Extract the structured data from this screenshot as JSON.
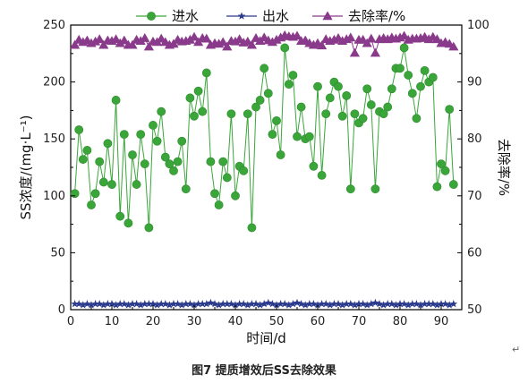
{
  "chart_data": {
    "type": "line",
    "x": [
      1,
      2,
      3,
      4,
      5,
      6,
      7,
      8,
      9,
      10,
      11,
      12,
      13,
      14,
      15,
      16,
      17,
      18,
      19,
      20,
      21,
      22,
      23,
      24,
      25,
      26,
      27,
      28,
      29,
      30,
      31,
      32,
      33,
      34,
      35,
      36,
      37,
      38,
      39,
      40,
      41,
      42,
      43,
      44,
      45,
      46,
      47,
      48,
      49,
      50,
      51,
      52,
      53,
      54,
      55,
      56,
      57,
      58,
      59,
      60,
      61,
      62,
      63,
      64,
      65,
      66,
      67,
      68,
      69,
      70,
      71,
      72,
      73,
      74,
      75,
      76,
      77,
      78,
      79,
      80,
      81,
      82,
      83,
      84,
      85,
      86,
      87,
      88,
      89,
      90,
      91,
      92,
      93
    ],
    "series": [
      {
        "name": "进水",
        "axis": "left",
        "marker": "circle",
        "color": "#3aa63a",
        "values": [
          102,
          158,
          132,
          140,
          92,
          102,
          130,
          112,
          146,
          110,
          184,
          82,
          154,
          76,
          136,
          110,
          154,
          128,
          72,
          162,
          148,
          174,
          134,
          128,
          122,
          130,
          148,
          106,
          186,
          170,
          192,
          174,
          208,
          130,
          102,
          92,
          130,
          116,
          172,
          100,
          126,
          122,
          172,
          72,
          178,
          184,
          212,
          190,
          154,
          166,
          136,
          230,
          198,
          206,
          152,
          178,
          150,
          152,
          126,
          196,
          118,
          172,
          186,
          200,
          196,
          170,
          188,
          106,
          172,
          164,
          168,
          194,
          180,
          106,
          174,
          172,
          178,
          194,
          212,
          212,
          230,
          206,
          190,
          168,
          196,
          210,
          200,
          204,
          108,
          128,
          122,
          176,
          110
        ]
      },
      {
        "name": "出水",
        "axis": "left",
        "marker": "star",
        "color": "#2a3a8c",
        "values": [
          5,
          5,
          4,
          5,
          4,
          5,
          5,
          4,
          5,
          5,
          4,
          5,
          5,
          4,
          5,
          5,
          4,
          5,
          5,
          5,
          4,
          5,
          5,
          4,
          5,
          5,
          4,
          5,
          5,
          4,
          5,
          5,
          5,
          6,
          5,
          4,
          5,
          5,
          5,
          4,
          5,
          5,
          4,
          5,
          5,
          4,
          5,
          6,
          5,
          4,
          5,
          5,
          4,
          5,
          6,
          5,
          4,
          5,
          5,
          4,
          5,
          5,
          4,
          5,
          5,
          4,
          5,
          5,
          4,
          5,
          5,
          4,
          5,
          6,
          5,
          4,
          5,
          5,
          4,
          5,
          5,
          4,
          5,
          5,
          4,
          5,
          5,
          5,
          4,
          5,
          5,
          4,
          5
        ]
      },
      {
        "name": "去除率/%",
        "axis": "right",
        "marker": "triangle",
        "color": "#8a3a8a",
        "values": [
          96.5,
          97.4,
          97.0,
          97.3,
          96.8,
          97.1,
          97.5,
          96.5,
          97.3,
          97.2,
          97.5,
          96.8,
          97.3,
          96.5,
          96.5,
          97.4,
          97.2,
          97.7,
          96.2,
          97.1,
          97.0,
          97.6,
          97.0,
          96.5,
          96.7,
          97.4,
          97.1,
          97.2,
          97.4,
          97.9,
          97.0,
          97.7,
          97.6,
          96.5,
          96.8,
          96.7,
          97.0,
          96.2,
          97.2,
          97.1,
          97.5,
          96.9,
          97.1,
          96.5,
          97.7,
          97.2,
          97.8,
          97.3,
          97.0,
          97.4,
          97.8,
          98.2,
          98.0,
          97.9,
          98.1,
          97.2,
          97.3,
          96.8,
          96.5,
          96.8,
          96.4,
          97.5,
          97.2,
          97.4,
          97.7,
          97.2,
          97.5,
          97.8,
          95.1,
          97.4,
          97.4,
          96.8,
          97.6,
          95.1,
          97.5,
          97.7,
          97.5,
          97.8,
          97.6,
          97.8,
          98.1,
          97.4,
          97.6,
          97.6,
          97.7,
          97.9,
          97.5,
          97.9,
          97.5,
          96.8,
          97.0,
          96.7,
          96.2
        ]
      }
    ],
    "xlabel": "时间/d",
    "ylabel": "SS浓度/(mg·L⁻¹)",
    "y2label": "去除率/%",
    "xlim": [
      0,
      95
    ],
    "ylim": [
      0,
      250
    ],
    "y2lim": [
      50,
      100
    ],
    "xticks": [
      0,
      10,
      20,
      30,
      40,
      50,
      60,
      70,
      80,
      90
    ],
    "yticks": [
      0,
      50,
      100,
      150,
      200,
      250
    ],
    "y2ticks": [
      50,
      60,
      70,
      80,
      90,
      100
    ],
    "grid": false,
    "legend_position": "top"
  },
  "caption": "图7 提质增效后SS去除效果",
  "return_mark": "↵"
}
